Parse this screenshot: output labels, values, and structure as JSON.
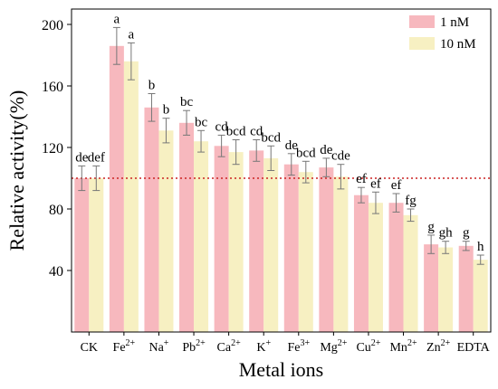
{
  "chart_data": {
    "type": "bar",
    "title": "",
    "xlabel": "Metal ions",
    "ylabel": "Relative activity(%)",
    "ylim": [
      0,
      210
    ],
    "yticks": [
      "40",
      "80",
      "120",
      "160",
      "200"
    ],
    "ytick_values": [
      40,
      80,
      120,
      160,
      200
    ],
    "grid": false,
    "legend_position": "top-right",
    "reference_line": {
      "y": 100,
      "style": "dotted",
      "color": "#cc2222"
    },
    "categories": [
      {
        "base": "CK",
        "sup": ""
      },
      {
        "base": "Fe",
        "sup": "2+"
      },
      {
        "base": "Na",
        "sup": "+"
      },
      {
        "base": "Pb",
        "sup": "2+"
      },
      {
        "base": "Ca",
        "sup": "2+"
      },
      {
        "base": "K",
        "sup": "+"
      },
      {
        "base": "Fe",
        "sup": "3+"
      },
      {
        "base": "Mg",
        "sup": "2+"
      },
      {
        "base": "Cu",
        "sup": "2+"
      },
      {
        "base": "Mn",
        "sup": "2+"
      },
      {
        "base": "Zn",
        "sup": "2+"
      },
      {
        "base": "EDTA",
        "sup": ""
      }
    ],
    "series": [
      {
        "name": "1 nM",
        "color": "#f7b8be",
        "values": [
          100,
          186,
          146,
          136,
          121,
          118,
          109,
          107,
          89,
          84,
          57,
          56
        ],
        "errors": [
          8,
          12,
          9,
          8,
          7,
          7,
          7,
          6,
          5,
          6,
          6,
          3
        ],
        "labels": [
          "de",
          "a",
          "b",
          "bc",
          "cd",
          "cd",
          "de",
          "de",
          "ef",
          "ef",
          "g",
          "g"
        ]
      },
      {
        "name": "10 nM",
        "color": "#f7f0c2",
        "values": [
          100,
          176,
          131,
          124,
          117,
          113,
          104,
          101,
          84,
          76,
          55,
          47
        ],
        "errors": [
          8,
          12,
          8,
          7,
          8,
          8,
          7,
          8,
          7,
          4,
          4,
          3
        ],
        "labels": [
          "def",
          "a",
          "b",
          "bc",
          "bcd",
          "bcd",
          "bcd",
          "cde",
          "ef",
          "fg",
          "gh",
          "h"
        ]
      }
    ]
  }
}
